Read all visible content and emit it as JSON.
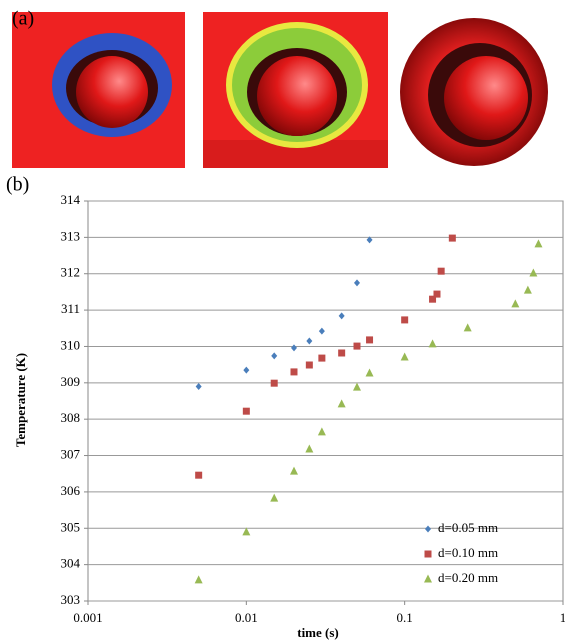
{
  "panel_labels": [
    "(a)",
    "(b)"
  ],
  "chart_data": {
    "type": "scatter",
    "x_label": "time (s)",
    "y_label": "Temperature (K)",
    "xscale": "log",
    "xlim": [
      0.001,
      1
    ],
    "xticks": [
      0.001,
      0.01,
      0.1,
      1
    ],
    "ylim": [
      303,
      314
    ],
    "yticks": [
      303,
      304,
      305,
      306,
      307,
      308,
      309,
      310,
      311,
      312,
      313,
      314
    ],
    "grid": true,
    "legend": "lower right",
    "series": [
      {
        "name": "d=0.05 mm",
        "color": "#4a7ebb",
        "marker": "diamond",
        "x": [
          0.005,
          0.01,
          0.015,
          0.02,
          0.025,
          0.03,
          0.04,
          0.05,
          0.06
        ],
        "values": [
          308.9,
          309.35,
          309.74,
          309.96,
          310.15,
          310.42,
          310.84,
          311.75,
          312.93
        ]
      },
      {
        "name": "d=0.10 mm",
        "color": "#be4b48",
        "marker": "square",
        "x": [
          0.005,
          0.01,
          0.015,
          0.02,
          0.025,
          0.03,
          0.04,
          0.05,
          0.06,
          0.1,
          0.15,
          0.16,
          0.17,
          0.2
        ],
        "values": [
          306.46,
          308.22,
          308.99,
          309.3,
          309.49,
          309.68,
          309.82,
          310.01,
          310.18,
          310.73,
          311.3,
          311.44,
          312.07,
          312.98
        ]
      },
      {
        "name": "d=0.20 mm",
        "color": "#98b954",
        "marker": "triangle",
        "x": [
          0.005,
          0.01,
          0.015,
          0.02,
          0.025,
          0.03,
          0.04,
          0.05,
          0.06,
          0.1,
          0.15,
          0.25,
          0.5,
          0.6,
          0.65,
          0.7
        ],
        "values": [
          303.58,
          304.9,
          305.83,
          306.57,
          307.18,
          307.65,
          308.42,
          308.88,
          309.27,
          309.71,
          310.07,
          310.51,
          311.17,
          311.55,
          312.02,
          312.82
        ]
      }
    ]
  }
}
